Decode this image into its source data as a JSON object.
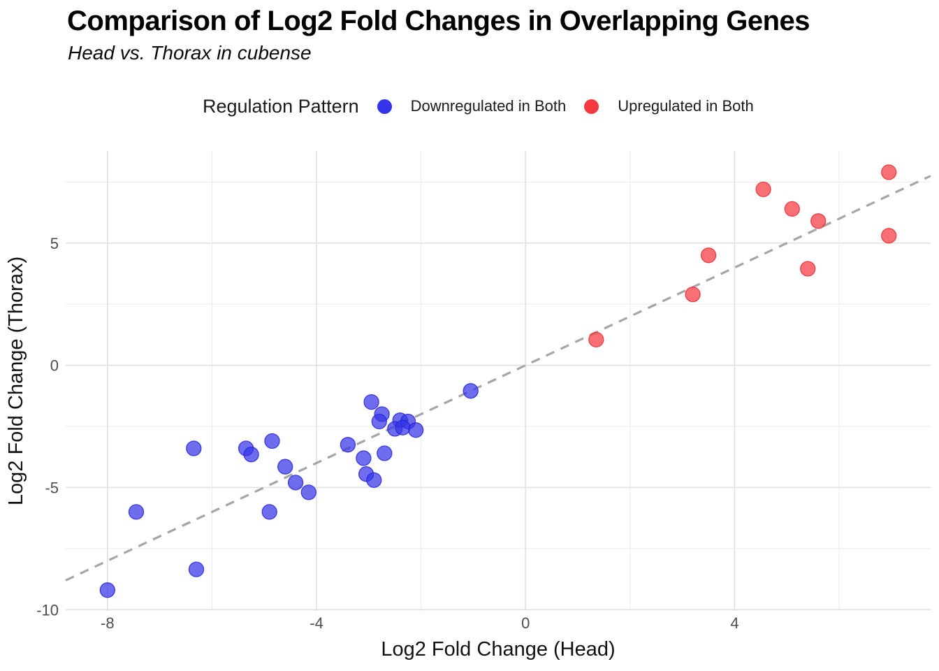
{
  "chart_data": {
    "type": "scatter",
    "title": "Comparison of Log2 Fold Changes in Overlapping Genes",
    "subtitle": "Head vs. Thorax in cubense",
    "xlabel": "Log2 Fold Change (Head)",
    "ylabel": "Log2 Fold Change (Thorax)",
    "xlim": [
      -8.8,
      7.75
    ],
    "ylim": [
      -10.05,
      8.77
    ],
    "x_ticks": [
      -8,
      -4,
      0,
      4
    ],
    "y_ticks": [
      -10,
      -5,
      0,
      5
    ],
    "x_minor_ticks": [
      -6,
      -2,
      2,
      6
    ],
    "y_minor_ticks": [
      -7.5,
      -2.5,
      2.5,
      7.5
    ],
    "grid": "major-and-minor, light gray on white",
    "legend": {
      "title": "Regulation Pattern",
      "position": "top"
    },
    "reference_line": {
      "type": "identity",
      "slope": 1,
      "intercept": 0,
      "style": "dashed",
      "color": "#A6A6A6"
    },
    "series": [
      {
        "name": "Downregulated in Both",
        "color": "#3434E8",
        "stroke": "#2525D8",
        "points": [
          [
            -8.0,
            -9.2
          ],
          [
            -7.45,
            -6.0
          ],
          [
            -6.35,
            -3.4
          ],
          [
            -6.3,
            -8.35
          ],
          [
            -5.35,
            -3.4
          ],
          [
            -5.25,
            -3.65
          ],
          [
            -4.85,
            -3.1
          ],
          [
            -4.9,
            -6.0
          ],
          [
            -4.6,
            -4.15
          ],
          [
            -4.4,
            -4.8
          ],
          [
            -4.15,
            -5.2
          ],
          [
            -3.4,
            -3.25
          ],
          [
            -3.1,
            -3.8
          ],
          [
            -3.05,
            -4.45
          ],
          [
            -2.9,
            -4.7
          ],
          [
            -2.95,
            -1.5
          ],
          [
            -2.75,
            -2.0
          ],
          [
            -2.8,
            -2.3
          ],
          [
            -2.7,
            -3.6
          ],
          [
            -2.4,
            -2.25
          ],
          [
            -2.25,
            -2.3
          ],
          [
            -2.5,
            -2.6
          ],
          [
            -2.35,
            -2.55
          ],
          [
            -2.1,
            -2.65
          ],
          [
            -1.05,
            -1.05
          ]
        ]
      },
      {
        "name": "Upregulated in Both",
        "color": "#F5373F",
        "stroke": "#E52B34",
        "points": [
          [
            1.35,
            1.05
          ],
          [
            3.2,
            2.9
          ],
          [
            3.5,
            4.5
          ],
          [
            5.4,
            3.95
          ],
          [
            4.55,
            7.2
          ],
          [
            5.1,
            6.4
          ],
          [
            5.6,
            5.9
          ],
          [
            6.95,
            7.9
          ],
          [
            6.95,
            5.3
          ]
        ]
      }
    ]
  }
}
